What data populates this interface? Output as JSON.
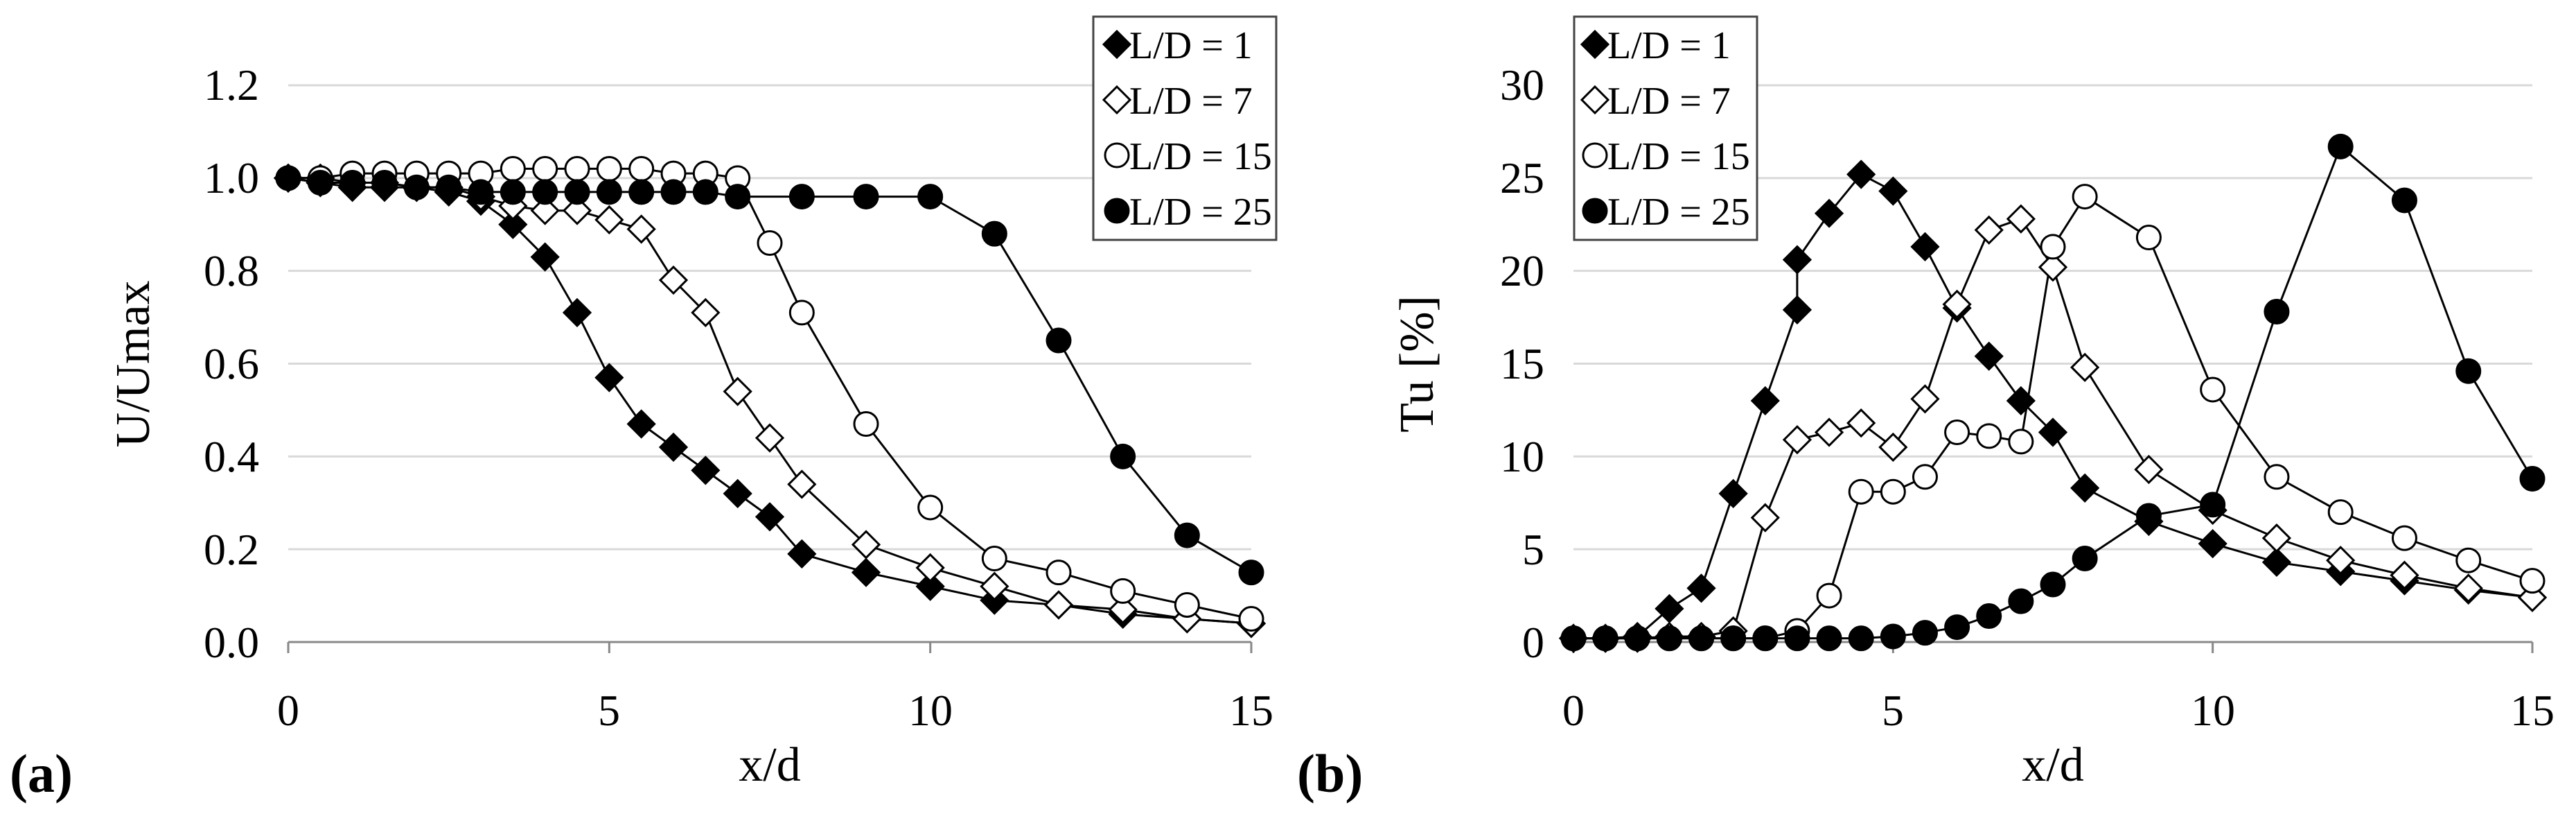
{
  "chart_data": [
    {
      "type": "line",
      "panel_label": "(a)",
      "xlabel": "x/d",
      "ylabel": "U/Umax",
      "xlim": [
        0,
        15
      ],
      "ylim": [
        0,
        1.2
      ],
      "xticks": [
        "0",
        "5",
        "10",
        "15"
      ],
      "yticks": [
        "0.0",
        "0.2",
        "0.4",
        "0.6",
        "0.8",
        "1.0",
        "1.2"
      ],
      "grid": "horizontal",
      "legend_position": "top-right",
      "series": [
        {
          "name": "L/D = 1",
          "marker": "diamond-filled",
          "x": [
            0,
            0.5,
            1,
            1.5,
            2,
            2.5,
            3,
            3.5,
            4,
            4.5,
            5,
            5.5,
            6,
            6.5,
            7,
            7.5,
            8,
            9,
            10,
            11,
            12,
            13,
            14,
            15
          ],
          "y": [
            1.0,
            0.99,
            0.98,
            0.98,
            0.98,
            0.97,
            0.95,
            0.9,
            0.83,
            0.71,
            0.57,
            0.47,
            0.42,
            0.37,
            0.32,
            0.27,
            0.19,
            0.15,
            0.12,
            0.09,
            0.08,
            0.06,
            0.05,
            0.04
          ]
        },
        {
          "name": "L/D = 7",
          "marker": "diamond-open",
          "x": [
            0,
            0.5,
            1,
            1.5,
            2,
            2.5,
            3,
            3.5,
            4,
            4.5,
            5,
            5.5,
            6,
            6.5,
            7,
            7.5,
            8,
            9,
            10,
            11,
            12,
            13,
            14,
            15
          ],
          "y": [
            1.0,
            1.0,
            0.99,
            0.99,
            0.98,
            0.98,
            0.96,
            0.94,
            0.93,
            0.93,
            0.91,
            0.89,
            0.78,
            0.71,
            0.54,
            0.44,
            0.34,
            0.21,
            0.16,
            0.12,
            0.08,
            0.07,
            0.05,
            0.04
          ]
        },
        {
          "name": "L/D = 15",
          "marker": "circle-open",
          "x": [
            0,
            0.5,
            1,
            1.5,
            2,
            2.5,
            3,
            3.5,
            4,
            4.5,
            5,
            5.5,
            6,
            6.5,
            7,
            7.5,
            8,
            9,
            10,
            11,
            12,
            13,
            14,
            15
          ],
          "y": [
            1.0,
            1.0,
            1.01,
            1.01,
            1.01,
            1.01,
            1.01,
            1.02,
            1.02,
            1.02,
            1.02,
            1.02,
            1.01,
            1.01,
            1.0,
            0.86,
            0.71,
            0.47,
            0.29,
            0.18,
            0.15,
            0.11,
            0.08,
            0.05
          ]
        },
        {
          "name": "L/D = 25",
          "marker": "circle-filled",
          "x": [
            0,
            0.5,
            1,
            1.5,
            2,
            2.5,
            3,
            3.5,
            4,
            4.5,
            5,
            5.5,
            6,
            6.5,
            7,
            8,
            9,
            10,
            11,
            12,
            13,
            14,
            15
          ],
          "y": [
            1.0,
            0.99,
            0.99,
            0.99,
            0.98,
            0.98,
            0.97,
            0.97,
            0.97,
            0.97,
            0.97,
            0.97,
            0.97,
            0.97,
            0.96,
            0.96,
            0.96,
            0.96,
            0.88,
            0.65,
            0.4,
            0.23,
            0.15
          ]
        }
      ]
    },
    {
      "type": "line",
      "panel_label": "(b)",
      "xlabel": "x/d",
      "ylabel": "Tu [%]",
      "xlim": [
        0,
        15
      ],
      "ylim": [
        0,
        30
      ],
      "xticks": [
        "0",
        "5",
        "10",
        "15"
      ],
      "yticks": [
        "0",
        "5",
        "10",
        "15",
        "20",
        "25",
        "30"
      ],
      "grid": "horizontal",
      "legend_position": "top-left",
      "series": [
        {
          "name": "L/D = 1",
          "marker": "diamond-filled",
          "x": [
            0,
            0.5,
            1,
            1.5,
            2,
            2.5,
            3,
            3.5,
            3.5,
            4,
            4.5,
            5,
            5.5,
            6,
            6.5,
            7,
            7.5,
            8,
            9,
            10,
            11,
            12,
            13,
            14,
            15
          ],
          "y": [
            0.2,
            0.2,
            0.3,
            1.8,
            2.9,
            8.0,
            13.0,
            17.9,
            20.6,
            23.1,
            25.2,
            24.3,
            21.3,
            18.0,
            15.4,
            13.0,
            11.3,
            8.3,
            6.5,
            5.3,
            4.3,
            3.8,
            3.3,
            2.8,
            2.4
          ]
        },
        {
          "name": "L/D = 7",
          "marker": "diamond-open",
          "x": [
            0,
            0.5,
            1,
            1.5,
            2,
            2.5,
            3,
            3.5,
            4,
            4.5,
            5,
            5.5,
            6,
            6.5,
            7,
            7.5,
            8,
            9,
            10,
            11,
            12,
            13,
            14,
            15
          ],
          "y": [
            0.2,
            0.2,
            0.2,
            0.3,
            0.3,
            0.6,
            6.7,
            10.9,
            11.3,
            11.8,
            10.5,
            13.1,
            18.2,
            22.2,
            22.8,
            20.2,
            14.8,
            9.3,
            7.1,
            5.6,
            4.4,
            3.6,
            2.9,
            2.4
          ]
        },
        {
          "name": "L/D = 15",
          "marker": "circle-open",
          "x": [
            0,
            0.5,
            1,
            1.5,
            2,
            2.5,
            3,
            3.5,
            4,
            4.5,
            5,
            5.5,
            6,
            6.5,
            7,
            7.5,
            8,
            9,
            10,
            11,
            12,
            13,
            14,
            15
          ],
          "y": [
            0.2,
            0.2,
            0.2,
            0.2,
            0.2,
            0.2,
            0.2,
            0.6,
            2.5,
            8.1,
            8.1,
            8.9,
            11.3,
            11.1,
            10.8,
            21.3,
            24.0,
            21.8,
            13.6,
            8.9,
            7.0,
            5.6,
            4.4,
            3.3
          ]
        },
        {
          "name": "L/D = 25",
          "marker": "circle-filled",
          "x": [
            0,
            0.5,
            1,
            1.5,
            2,
            2.5,
            3,
            3.5,
            4,
            4.5,
            5,
            5.5,
            6,
            6.5,
            7,
            7.5,
            8,
            9,
            10,
            11,
            12,
            13,
            14,
            15
          ],
          "y": [
            0.2,
            0.2,
            0.2,
            0.2,
            0.2,
            0.2,
            0.2,
            0.2,
            0.2,
            0.2,
            0.3,
            0.5,
            0.8,
            1.4,
            2.2,
            3.1,
            4.5,
            6.8,
            7.4,
            17.8,
            26.7,
            23.8,
            14.6,
            8.8
          ]
        }
      ]
    }
  ]
}
